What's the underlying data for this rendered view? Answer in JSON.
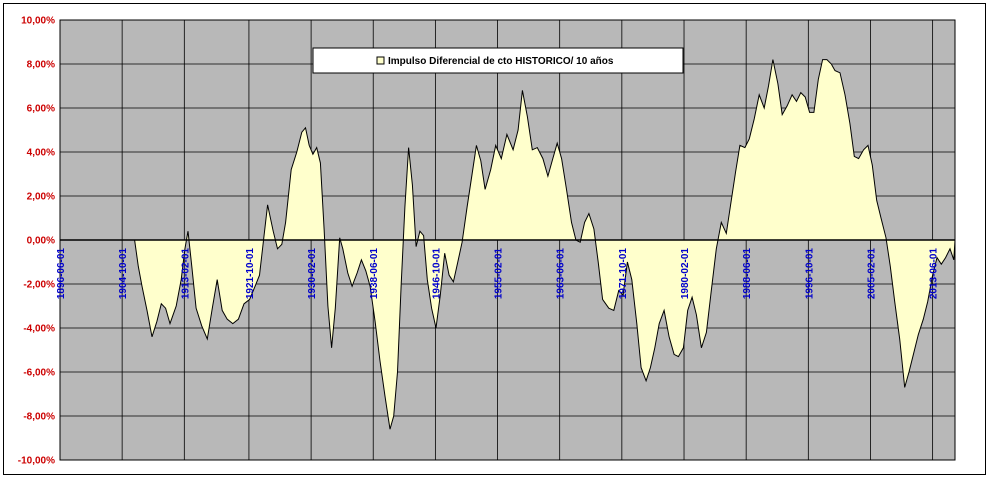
{
  "chart_data": {
    "type": "area",
    "title": "",
    "xlabel": "",
    "ylabel": "",
    "ylim": [
      -0.1,
      0.1
    ],
    "y_ticks": [
      "10,00%",
      "8,00%",
      "6,00%",
      "4,00%",
      "2,00%",
      "0,00%",
      "-2,00%",
      "-4,00%",
      "-6,00%",
      "-8,00%",
      "-10,00%"
    ],
    "x_ticks": [
      "1896-06-01",
      "1904-10-01",
      "1913-02-01",
      "1921-10-01",
      "1930-02-01",
      "1938-06-01",
      "1946-10-01",
      "1955-02-01",
      "1963-06-01",
      "1971-10-01",
      "1980-02-01",
      "1988-06-01",
      "1996-10-01",
      "2005-02-01",
      "2013-06-01"
    ],
    "x_range": [
      "1896-06-01",
      "2016-06-01"
    ],
    "grid": true,
    "legend_position": "top-center",
    "colors": {
      "fill": "#ffffcc",
      "line": "#000000",
      "plot_bg": "#b8b8b8",
      "ytick": "#cc0000",
      "xtick": "#0000cc"
    },
    "series": [
      {
        "name": "Impulso Diferencial de cto HISTORICO/ 10 años",
        "points": [
          [
            "1906-06-01",
            0.0
          ],
          [
            "1906-12-01",
            -0.012
          ],
          [
            "1907-06-01",
            -0.021
          ],
          [
            "1908-02-01",
            -0.032
          ],
          [
            "1908-10-01",
            -0.044
          ],
          [
            "1909-06-01",
            -0.037
          ],
          [
            "1910-01-01",
            -0.029
          ],
          [
            "1910-08-01",
            -0.031
          ],
          [
            "1911-03-01",
            -0.038
          ],
          [
            "1912-01-01",
            -0.03
          ],
          [
            "1912-09-01",
            -0.018
          ],
          [
            "1913-03-01",
            -0.004
          ],
          [
            "1913-08-01",
            0.004
          ],
          [
            "1914-02-01",
            -0.012
          ],
          [
            "1914-09-01",
            -0.031
          ],
          [
            "1915-06-01",
            -0.039
          ],
          [
            "1916-03-01",
            -0.045
          ],
          [
            "1916-11-01",
            -0.031
          ],
          [
            "1917-07-01",
            -0.018
          ],
          [
            "1918-03-01",
            -0.032
          ],
          [
            "1918-11-01",
            -0.036
          ],
          [
            "1919-08-01",
            -0.038
          ],
          [
            "1920-05-01",
            -0.036
          ],
          [
            "1921-02-01",
            -0.029
          ],
          [
            "1921-11-01",
            -0.027
          ],
          [
            "1922-08-01",
            -0.021
          ],
          [
            "1923-03-01",
            -0.016
          ],
          [
            "1923-10-01",
            0.001
          ],
          [
            "1924-04-01",
            0.016
          ],
          [
            "1925-01-01",
            0.004
          ],
          [
            "1925-08-01",
            -0.004
          ],
          [
            "1926-03-01",
            -0.002
          ],
          [
            "1926-09-01",
            0.008
          ],
          [
            "1927-06-01",
            0.032
          ],
          [
            "1928-03-01",
            0.04
          ],
          [
            "1928-11-01",
            0.049
          ],
          [
            "1929-05-01",
            0.051
          ],
          [
            "1929-11-01",
            0.043
          ],
          [
            "1930-05-01",
            0.039
          ],
          [
            "1930-11-01",
            0.042
          ],
          [
            "1931-05-01",
            0.035
          ],
          [
            "1931-11-01",
            0.005
          ],
          [
            "1932-05-01",
            -0.03
          ],
          [
            "1932-11-01",
            -0.049
          ],
          [
            "1933-05-01",
            -0.031
          ],
          [
            "1933-12-01",
            0.001
          ],
          [
            "1934-05-01",
            -0.004
          ],
          [
            "1935-01-01",
            -0.015
          ],
          [
            "1935-08-01",
            -0.021
          ],
          [
            "1936-04-01",
            -0.015
          ],
          [
            "1936-11-01",
            -0.009
          ],
          [
            "1937-06-01",
            -0.014
          ],
          [
            "1938-01-01",
            -0.021
          ],
          [
            "1938-09-01",
            -0.037
          ],
          [
            "1939-05-01",
            -0.055
          ],
          [
            "1940-01-01",
            -0.071
          ],
          [
            "1940-09-01",
            -0.086
          ],
          [
            "1941-03-01",
            -0.08
          ],
          [
            "1941-09-01",
            -0.06
          ],
          [
            "1942-03-01",
            -0.02
          ],
          [
            "1942-09-01",
            0.015
          ],
          [
            "1943-03-01",
            0.042
          ],
          [
            "1943-09-01",
            0.025
          ],
          [
            "1944-03-01",
            -0.003
          ],
          [
            "1944-09-01",
            0.004
          ],
          [
            "1945-03-01",
            0.002
          ],
          [
            "1945-09-01",
            -0.018
          ],
          [
            "1946-04-01",
            -0.031
          ],
          [
            "1946-11-01",
            -0.04
          ],
          [
            "1947-06-01",
            -0.025
          ],
          [
            "1948-01-01",
            -0.006
          ],
          [
            "1948-08-01",
            -0.016
          ],
          [
            "1949-03-01",
            -0.019
          ],
          [
            "1949-10-01",
            -0.01
          ],
          [
            "1950-05-01",
            -0.001
          ],
          [
            "1951-01-01",
            0.015
          ],
          [
            "1951-09-01",
            0.03
          ],
          [
            "1952-04-01",
            0.043
          ],
          [
            "1952-11-01",
            0.036
          ],
          [
            "1953-06-01",
            0.023
          ],
          [
            "1954-03-01",
            0.032
          ],
          [
            "1954-11-01",
            0.043
          ],
          [
            "1955-08-01",
            0.037
          ],
          [
            "1956-05-01",
            0.048
          ],
          [
            "1957-03-01",
            0.041
          ],
          [
            "1957-11-01",
            0.05
          ],
          [
            "1958-06-01",
            0.068
          ],
          [
            "1959-02-01",
            0.056
          ],
          [
            "1959-10-01",
            0.041
          ],
          [
            "1960-06-01",
            0.042
          ],
          [
            "1961-03-01",
            0.037
          ],
          [
            "1961-11-01",
            0.029
          ],
          [
            "1962-07-01",
            0.037
          ],
          [
            "1963-02-01",
            0.044
          ],
          [
            "1963-09-01",
            0.037
          ],
          [
            "1964-05-01",
            0.023
          ],
          [
            "1965-01-01",
            0.008
          ],
          [
            "1965-08-01",
            0.0
          ],
          [
            "1966-03-01",
            -0.001
          ],
          [
            "1966-10-01",
            0.008
          ],
          [
            "1967-05-01",
            0.012
          ],
          [
            "1968-01-01",
            0.005
          ],
          [
            "1968-08-01",
            -0.01
          ],
          [
            "1969-03-01",
            -0.027
          ],
          [
            "1970-01-01",
            -0.031
          ],
          [
            "1970-09-01",
            -0.032
          ],
          [
            "1971-05-01",
            -0.023
          ],
          [
            "1971-12-01",
            -0.025
          ],
          [
            "1972-07-01",
            -0.01
          ],
          [
            "1973-02-01",
            -0.018
          ],
          [
            "1973-10-01",
            -0.038
          ],
          [
            "1974-05-01",
            -0.058
          ],
          [
            "1975-01-01",
            -0.064
          ],
          [
            "1975-08-01",
            -0.058
          ],
          [
            "1976-03-01",
            -0.049
          ],
          [
            "1976-10-01",
            -0.038
          ],
          [
            "1977-06-01",
            -0.032
          ],
          [
            "1978-02-01",
            -0.044
          ],
          [
            "1978-10-01",
            -0.052
          ],
          [
            "1979-05-01",
            -0.053
          ],
          [
            "1980-01-01",
            -0.049
          ],
          [
            "1980-08-01",
            -0.032
          ],
          [
            "1981-03-01",
            -0.026
          ],
          [
            "1981-10-01",
            -0.034
          ],
          [
            "1982-06-01",
            -0.049
          ],
          [
            "1983-02-01",
            -0.042
          ],
          [
            "1983-10-01",
            -0.023
          ],
          [
            "1984-06-01",
            -0.004
          ],
          [
            "1985-02-01",
            0.008
          ],
          [
            "1985-10-01",
            0.003
          ],
          [
            "1986-05-01",
            0.016
          ],
          [
            "1987-01-01",
            0.031
          ],
          [
            "1987-08-01",
            0.043
          ],
          [
            "1988-04-01",
            0.042
          ],
          [
            "1988-11-01",
            0.046
          ],
          [
            "1989-07-01",
            0.055
          ],
          [
            "1990-03-01",
            0.066
          ],
          [
            "1990-11-01",
            0.06
          ],
          [
            "1991-06-01",
            0.07
          ],
          [
            "1992-01-01",
            0.082
          ],
          [
            "1992-09-01",
            0.071
          ],
          [
            "1993-04-01",
            0.057
          ],
          [
            "1993-12-01",
            0.061
          ],
          [
            "1994-08-01",
            0.066
          ],
          [
            "1995-03-01",
            0.063
          ],
          [
            "1995-10-01",
            0.067
          ],
          [
            "1996-05-01",
            0.065
          ],
          [
            "1996-12-01",
            0.058
          ],
          [
            "1997-07-01",
            0.058
          ],
          [
            "1998-02-01",
            0.073
          ],
          [
            "1998-09-01",
            0.082
          ],
          [
            "1999-04-01",
            0.082
          ],
          [
            "1999-11-01",
            0.08
          ],
          [
            "2000-05-01",
            0.077
          ],
          [
            "2001-01-01",
            0.076
          ],
          [
            "2001-09-01",
            0.066
          ],
          [
            "2002-05-01",
            0.053
          ],
          [
            "2002-12-01",
            0.038
          ],
          [
            "2003-07-01",
            0.037
          ],
          [
            "2004-03-01",
            0.041
          ],
          [
            "2004-10-01",
            0.043
          ],
          [
            "2005-05-01",
            0.034
          ],
          [
            "2005-12-01",
            0.018
          ],
          [
            "2006-07-01",
            0.01
          ],
          [
            "2007-03-01",
            0.001
          ],
          [
            "2007-10-01",
            -0.012
          ],
          [
            "2008-05-01",
            -0.028
          ],
          [
            "2009-01-01",
            -0.045
          ],
          [
            "2009-09-01",
            -0.067
          ],
          [
            "2010-04-01",
            -0.06
          ],
          [
            "2010-11-01",
            -0.052
          ],
          [
            "2011-07-01",
            -0.043
          ],
          [
            "2012-03-01",
            -0.036
          ],
          [
            "2012-10-01",
            -0.028
          ],
          [
            "2013-06-01",
            -0.016
          ],
          [
            "2014-01-01",
            -0.008
          ],
          [
            "2014-08-01",
            -0.011
          ],
          [
            "2015-03-01",
            -0.008
          ],
          [
            "2015-10-01",
            -0.004
          ],
          [
            "2016-04-01",
            -0.009
          ],
          [
            "2016-06-01",
            0.0
          ]
        ]
      }
    ]
  }
}
